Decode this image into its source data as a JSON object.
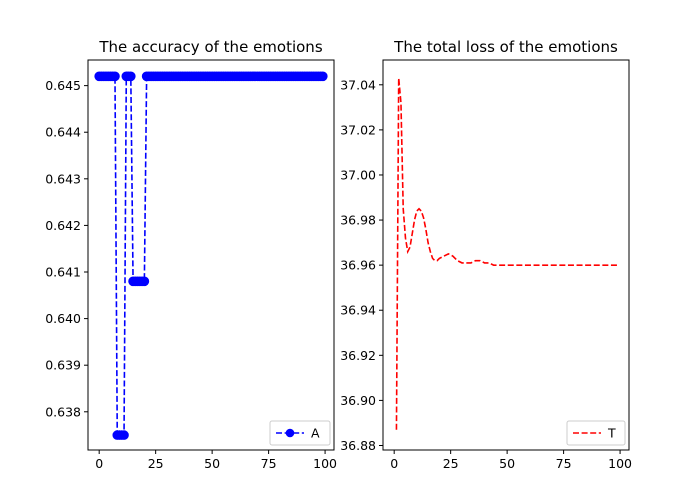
{
  "chart_data": [
    {
      "type": "line",
      "title": "The accuracy of the emotions",
      "xlabel": "",
      "ylabel": "",
      "xlim": [
        -4.95,
        103.95
      ],
      "ylim": [
        0.63718,
        0.64555
      ],
      "xticks": [
        0,
        25,
        50,
        75,
        100
      ],
      "yticks": [
        0.638,
        0.639,
        0.64,
        0.641,
        0.642,
        0.643,
        0.644,
        0.645
      ],
      "grid": false,
      "legend_position": "lower-right",
      "series": [
        {
          "name": "A",
          "color": "#0000ff",
          "line_style": "dashed",
          "marker": "circle",
          "x": [
            0,
            1,
            2,
            3,
            4,
            5,
            6,
            7,
            8,
            9,
            10,
            11,
            12,
            13,
            14,
            15,
            16,
            17,
            18,
            19,
            20,
            21,
            22,
            23,
            24,
            25,
            26,
            27,
            28,
            29,
            30,
            31,
            32,
            33,
            34,
            35,
            36,
            37,
            38,
            39,
            40,
            41,
            42,
            43,
            44,
            45,
            46,
            47,
            48,
            49,
            50,
            51,
            52,
            53,
            54,
            55,
            56,
            57,
            58,
            59,
            60,
            61,
            62,
            63,
            64,
            65,
            66,
            67,
            68,
            69,
            70,
            71,
            72,
            73,
            74,
            75,
            76,
            77,
            78,
            79,
            80,
            81,
            82,
            83,
            84,
            85,
            86,
            87,
            88,
            89,
            90,
            91,
            92,
            93,
            94,
            95,
            96,
            97,
            98,
            99
          ],
          "y": [
            0.6452,
            0.6452,
            0.6452,
            0.6452,
            0.6452,
            0.6452,
            0.6452,
            0.6452,
            0.6375,
            0.6375,
            0.6375,
            0.6375,
            0.6452,
            0.6452,
            0.6452,
            0.6408,
            0.6408,
            0.6408,
            0.6408,
            0.6408,
            0.6408,
            0.6452,
            0.6452,
            0.6452,
            0.6452,
            0.6452,
            0.6452,
            0.6452,
            0.6452,
            0.6452,
            0.6452,
            0.6452,
            0.6452,
            0.6452,
            0.6452,
            0.6452,
            0.6452,
            0.6452,
            0.6452,
            0.6452,
            0.6452,
            0.6452,
            0.6452,
            0.6452,
            0.6452,
            0.6452,
            0.6452,
            0.6452,
            0.6452,
            0.6452,
            0.6452,
            0.6452,
            0.6452,
            0.6452,
            0.6452,
            0.6452,
            0.6452,
            0.6452,
            0.6452,
            0.6452,
            0.6452,
            0.6452,
            0.6452,
            0.6452,
            0.6452,
            0.6452,
            0.6452,
            0.6452,
            0.6452,
            0.6452,
            0.6452,
            0.6452,
            0.6452,
            0.6452,
            0.6452,
            0.6452,
            0.6452,
            0.6452,
            0.6452,
            0.6452,
            0.6452,
            0.6452,
            0.6452,
            0.6452,
            0.6452,
            0.6452,
            0.6452,
            0.6452,
            0.6452,
            0.6452,
            0.6452,
            0.6452,
            0.6452,
            0.6452,
            0.6452,
            0.6452,
            0.6452,
            0.6452,
            0.6452,
            0.6452
          ]
        }
      ]
    },
    {
      "type": "line",
      "title": "The total loss of the emotions",
      "xlabel": "",
      "ylabel": "",
      "xlim": [
        -4.95,
        103.95
      ],
      "ylim": [
        36.878,
        37.051
      ],
      "xticks": [
        0,
        25,
        50,
        75,
        100
      ],
      "yticks": [
        36.88,
        36.9,
        36.92,
        36.94,
        36.96,
        36.98,
        37.0,
        37.02,
        37.04
      ],
      "grid": false,
      "legend_position": "lower-right",
      "series": [
        {
          "name": "T",
          "color": "#ff0000",
          "line_style": "dashed",
          "marker": "none",
          "x": [
            1,
            2,
            3,
            4,
            5,
            6,
            7,
            8,
            9,
            10,
            11,
            12,
            13,
            14,
            15,
            16,
            17,
            18,
            19,
            20,
            22,
            24,
            26,
            28,
            30,
            32,
            34,
            36,
            38,
            40,
            42,
            44,
            46,
            48,
            50,
            55,
            60,
            65,
            70,
            75,
            80,
            85,
            90,
            95,
            99
          ],
          "y": [
            36.887,
            37.043,
            37.032,
            36.985,
            36.972,
            36.966,
            36.968,
            36.974,
            36.98,
            36.984,
            36.985,
            36.984,
            36.981,
            36.976,
            36.97,
            36.966,
            36.963,
            36.962,
            36.962,
            36.963,
            36.964,
            36.965,
            36.964,
            36.962,
            36.961,
            36.961,
            36.961,
            36.962,
            36.962,
            36.961,
            36.961,
            36.96,
            36.96,
            36.96,
            36.96,
            36.96,
            36.96,
            36.96,
            36.96,
            36.96,
            36.96,
            36.96,
            36.96,
            36.96,
            36.96
          ]
        }
      ]
    }
  ]
}
